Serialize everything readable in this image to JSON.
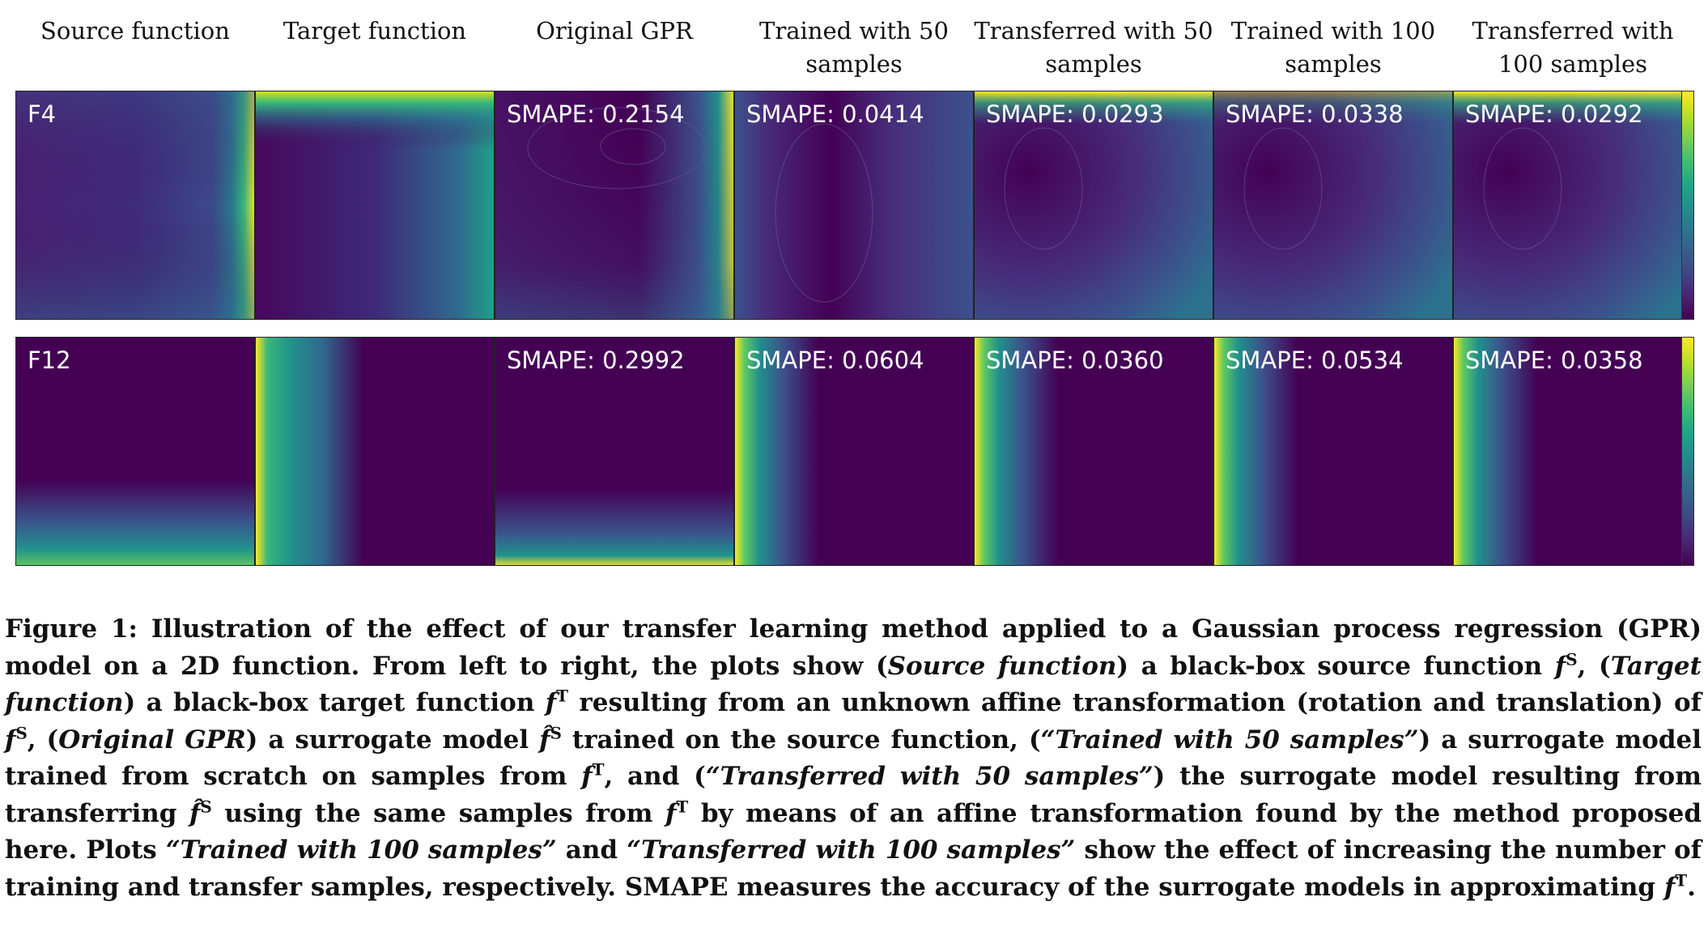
{
  "columns": [
    "Source function",
    "Target function",
    "Original GPR",
    "Trained with 50 samples",
    "Transferred with 50 samples",
    "Trained with 100 samples",
    "Transferred with 100 samples"
  ],
  "rows": [
    {
      "label": "F4",
      "panels": [
        {
          "label": "F4"
        },
        {
          "label": ""
        },
        {
          "label": "SMAPE: 0.2154"
        },
        {
          "label": "SMAPE: 0.0414"
        },
        {
          "label": "SMAPE: 0.0293"
        },
        {
          "label": "SMAPE: 0.0338"
        },
        {
          "label": "SMAPE: 0.0292"
        }
      ]
    },
    {
      "label": "F12",
      "panels": [
        {
          "label": "F12"
        },
        {
          "label": ""
        },
        {
          "label": "SMAPE: 0.2992"
        },
        {
          "label": "SMAPE: 0.0604"
        },
        {
          "label": "SMAPE: 0.0360"
        },
        {
          "label": "SMAPE: 0.0534"
        },
        {
          "label": "SMAPE: 0.0358"
        }
      ]
    }
  ],
  "colormap": [
    "#440154",
    "#3b528b",
    "#21918c",
    "#5ec962",
    "#fde725"
  ],
  "caption": {
    "figure": "Figure 1:",
    "t1": "Illustration of the effect of our transfer learning method applied to a Gaussian process regression (GPR) model on a 2D function. From left to right, the plots show (",
    "i1": "Source function",
    "t2": ") a black-box source function ",
    "f": "f",
    "S": "S",
    "T": "T",
    "t3": ", (",
    "i2": "Target function",
    "t4": ") a black-box target function ",
    "t5": " resulting from an unknown affine transformation (rotation and translation) of ",
    "t6": ", (",
    "i3": "Original GPR",
    "t7": ") a surrogate model ",
    "fhat": "f̂",
    "t8": " trained on the source function, (",
    "i4": "“Trained with 50 samples”",
    "t9": ") a surrogate model trained from scratch on samples from ",
    "t10": ", and (",
    "i5": "“Transferred with 50 samples”",
    "t11": ") the surrogate model resulting from transferring ",
    "t12": " using the same samples from ",
    "t13": " by means of an affine transformation found by the method proposed here. Plots ",
    "i6": "“Trained with 100 samples”",
    "t14": " and ",
    "i7": "“Transferred with 100 samples”",
    "t15": " show the effect of increasing the number of training and transfer samples, respectively. SMAPE measures the accuracy of the surrogate models in approximating ",
    "t16": "."
  }
}
